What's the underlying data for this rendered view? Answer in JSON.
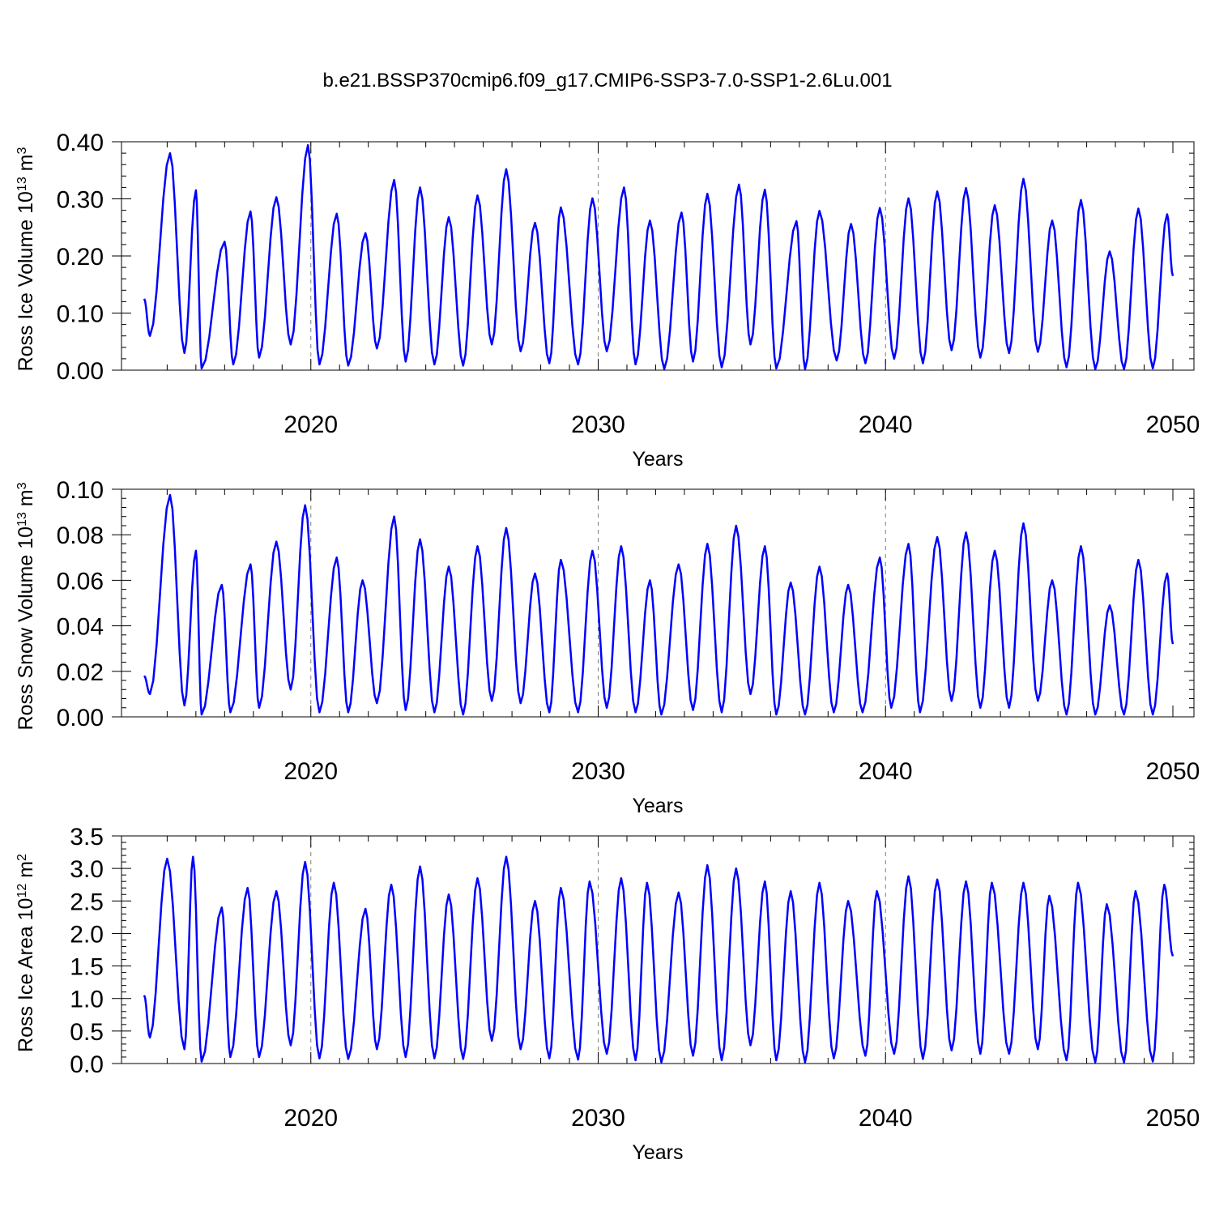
{
  "title": "b.e21.BSSP370cmip6.f09_g17.CMIP6-SSP3-7.0-SSP1-2.6Lu.001",
  "colors": {
    "series": "#0000ff",
    "axis": "#000000",
    "refline": "#7f7f7f"
  },
  "chart_data": [
    {
      "type": "line",
      "ylabel_main": "Ross Ice Volume 10",
      "ylabel_exp": "13",
      "ylabel_unit": " m",
      "ylabel_unit_exp": "3",
      "xlabel": "Years",
      "xlim": [
        2014.2,
        2050.0
      ],
      "ylim": [
        0.0,
        0.4
      ],
      "yticks": [
        "0.00",
        "0.10",
        "0.20",
        "0.30",
        "0.40"
      ],
      "ytick_values": [
        0.0,
        0.1,
        0.2,
        0.3,
        0.4
      ],
      "xticks": [
        "2020",
        "2030",
        "2040",
        "2050"
      ],
      "xtick_values": [
        2020,
        2030,
        2040,
        2050
      ],
      "peaks": [
        [
          2015.1,
          0.38
        ],
        [
          2016.0,
          0.315
        ],
        [
          2017.0,
          0.225
        ],
        [
          2017.9,
          0.278
        ],
        [
          2018.8,
          0.303
        ],
        [
          2019.9,
          0.394
        ],
        [
          2020.9,
          0.274
        ],
        [
          2021.9,
          0.24
        ],
        [
          2022.9,
          0.333
        ],
        [
          2023.8,
          0.32
        ],
        [
          2024.8,
          0.268
        ],
        [
          2025.8,
          0.306
        ],
        [
          2026.8,
          0.352
        ],
        [
          2027.8,
          0.258
        ],
        [
          2028.7,
          0.285
        ],
        [
          2029.8,
          0.301
        ],
        [
          2030.9,
          0.32
        ],
        [
          2031.8,
          0.262
        ],
        [
          2032.9,
          0.276
        ],
        [
          2033.8,
          0.309
        ],
        [
          2034.9,
          0.325
        ],
        [
          2035.8,
          0.316
        ],
        [
          2036.9,
          0.261
        ],
        [
          2037.7,
          0.279
        ],
        [
          2038.8,
          0.256
        ],
        [
          2039.8,
          0.284
        ],
        [
          2040.8,
          0.301
        ],
        [
          2041.8,
          0.313
        ],
        [
          2042.8,
          0.319
        ],
        [
          2043.8,
          0.289
        ],
        [
          2044.8,
          0.335
        ],
        [
          2045.8,
          0.262
        ],
        [
          2046.8,
          0.298
        ],
        [
          2047.8,
          0.208
        ],
        [
          2048.8,
          0.283
        ],
        [
          2049.8,
          0.273
        ]
      ],
      "troughs": [
        [
          2014.2,
          0.125
        ],
        [
          2014.4,
          0.06
        ],
        [
          2015.6,
          0.03
        ],
        [
          2016.2,
          0.003
        ],
        [
          2017.3,
          0.01
        ],
        [
          2018.2,
          0.022
        ],
        [
          2019.3,
          0.045
        ],
        [
          2020.3,
          0.01
        ],
        [
          2021.3,
          0.008
        ],
        [
          2022.3,
          0.038
        ],
        [
          2023.3,
          0.015
        ],
        [
          2024.3,
          0.01
        ],
        [
          2025.3,
          0.008
        ],
        [
          2026.3,
          0.045
        ],
        [
          2027.3,
          0.033
        ],
        [
          2028.3,
          0.012
        ],
        [
          2029.3,
          0.01
        ],
        [
          2030.3,
          0.033
        ],
        [
          2031.3,
          0.01
        ],
        [
          2032.3,
          0.002
        ],
        [
          2033.3,
          0.015
        ],
        [
          2034.3,
          0.005
        ],
        [
          2035.3,
          0.045
        ],
        [
          2036.2,
          0.003
        ],
        [
          2037.2,
          0.002
        ],
        [
          2038.3,
          0.017
        ],
        [
          2039.3,
          0.012
        ],
        [
          2040.3,
          0.02
        ],
        [
          2041.3,
          0.012
        ],
        [
          2042.3,
          0.035
        ],
        [
          2043.3,
          0.022
        ],
        [
          2044.3,
          0.03
        ],
        [
          2045.3,
          0.032
        ],
        [
          2046.3,
          0.005
        ],
        [
          2047.3,
          0.002
        ],
        [
          2048.3,
          0.002
        ],
        [
          2049.3,
          0.003
        ],
        [
          2050.0,
          0.165
        ]
      ]
    },
    {
      "type": "line",
      "ylabel_main": "Ross Snow Volume 10",
      "ylabel_exp": "13",
      "ylabel_unit": " m",
      "ylabel_unit_exp": "3",
      "xlabel": "Years",
      "xlim": [
        2014.2,
        2050.0
      ],
      "ylim": [
        0.0,
        0.1
      ],
      "yticks": [
        "0.00",
        "0.02",
        "0.04",
        "0.06",
        "0.08",
        "0.10"
      ],
      "ytick_values": [
        0.0,
        0.02,
        0.04,
        0.06,
        0.08,
        0.1
      ],
      "xticks": [
        "2020",
        "2030",
        "2040",
        "2050"
      ],
      "xtick_values": [
        2020,
        2030,
        2040,
        2050
      ],
      "peaks": [
        [
          2015.1,
          0.0975
        ],
        [
          2016.0,
          0.073
        ],
        [
          2016.9,
          0.058
        ],
        [
          2017.9,
          0.067
        ],
        [
          2018.8,
          0.077
        ],
        [
          2019.8,
          0.093
        ],
        [
          2020.9,
          0.07
        ],
        [
          2021.8,
          0.06
        ],
        [
          2022.9,
          0.088
        ],
        [
          2023.8,
          0.078
        ],
        [
          2024.8,
          0.066
        ],
        [
          2025.8,
          0.075
        ],
        [
          2026.8,
          0.083
        ],
        [
          2027.8,
          0.063
        ],
        [
          2028.7,
          0.069
        ],
        [
          2029.8,
          0.073
        ],
        [
          2030.8,
          0.075
        ],
        [
          2031.8,
          0.06
        ],
        [
          2032.8,
          0.067
        ],
        [
          2033.8,
          0.076
        ],
        [
          2034.8,
          0.084
        ],
        [
          2035.8,
          0.075
        ],
        [
          2036.7,
          0.059
        ],
        [
          2037.7,
          0.066
        ],
        [
          2038.7,
          0.058
        ],
        [
          2039.8,
          0.07
        ],
        [
          2040.8,
          0.076
        ],
        [
          2041.8,
          0.079
        ],
        [
          2042.8,
          0.081
        ],
        [
          2043.8,
          0.073
        ],
        [
          2044.8,
          0.085
        ],
        [
          2045.8,
          0.06
        ],
        [
          2046.8,
          0.075
        ],
        [
          2047.8,
          0.049
        ],
        [
          2048.8,
          0.069
        ],
        [
          2049.8,
          0.063
        ]
      ],
      "troughs": [
        [
          2014.2,
          0.018
        ],
        [
          2014.4,
          0.01
        ],
        [
          2015.6,
          0.005
        ],
        [
          2016.2,
          0.001
        ],
        [
          2017.2,
          0.002
        ],
        [
          2018.2,
          0.004
        ],
        [
          2019.3,
          0.012
        ],
        [
          2020.3,
          0.002
        ],
        [
          2021.3,
          0.002
        ],
        [
          2022.3,
          0.006
        ],
        [
          2023.3,
          0.003
        ],
        [
          2024.3,
          0.002
        ],
        [
          2025.3,
          0.001
        ],
        [
          2026.3,
          0.007
        ],
        [
          2027.3,
          0.006
        ],
        [
          2028.3,
          0.002
        ],
        [
          2029.3,
          0.002
        ],
        [
          2030.3,
          0.004
        ],
        [
          2031.3,
          0.002
        ],
        [
          2032.2,
          0.001
        ],
        [
          2033.3,
          0.003
        ],
        [
          2034.3,
          0.002
        ],
        [
          2035.3,
          0.01
        ],
        [
          2036.2,
          0.001
        ],
        [
          2037.2,
          0.001
        ],
        [
          2038.2,
          0.002
        ],
        [
          2039.2,
          0.002
        ],
        [
          2040.2,
          0.004
        ],
        [
          2041.2,
          0.002
        ],
        [
          2042.3,
          0.007
        ],
        [
          2043.3,
          0.004
        ],
        [
          2044.3,
          0.004
        ],
        [
          2045.3,
          0.007
        ],
        [
          2046.3,
          0.001
        ],
        [
          2047.3,
          0.001
        ],
        [
          2048.3,
          0.001
        ],
        [
          2049.3,
          0.001
        ],
        [
          2050.0,
          0.032
        ]
      ]
    },
    {
      "type": "line",
      "ylabel_main": "Ross Ice Area 10",
      "ylabel_exp": "12",
      "ylabel_unit": " m",
      "ylabel_unit_exp": "2",
      "xlabel": "Years",
      "xlim": [
        2014.2,
        2050.0
      ],
      "ylim": [
        0.0,
        3.5
      ],
      "yticks": [
        "0.0",
        "0.5",
        "1.0",
        "1.5",
        "2.0",
        "2.5",
        "3.0",
        "3.5"
      ],
      "ytick_values": [
        0.0,
        0.5,
        1.0,
        1.5,
        2.0,
        2.5,
        3.0,
        3.5
      ],
      "xticks": [
        "2020",
        "2030",
        "2040",
        "2050"
      ],
      "xtick_values": [
        2020,
        2030,
        2040,
        2050
      ],
      "peaks": [
        [
          2015.0,
          3.15
        ],
        [
          2015.9,
          3.18
        ],
        [
          2016.9,
          2.4
        ],
        [
          2017.8,
          2.7
        ],
        [
          2018.8,
          2.65
        ],
        [
          2019.8,
          3.1
        ],
        [
          2020.8,
          2.78
        ],
        [
          2021.9,
          2.38
        ],
        [
          2022.8,
          2.75
        ],
        [
          2023.8,
          3.03
        ],
        [
          2024.8,
          2.6
        ],
        [
          2025.8,
          2.85
        ],
        [
          2026.8,
          3.18
        ],
        [
          2027.8,
          2.5
        ],
        [
          2028.7,
          2.7
        ],
        [
          2029.7,
          2.8
        ],
        [
          2030.8,
          2.85
        ],
        [
          2031.7,
          2.78
        ],
        [
          2032.8,
          2.63
        ],
        [
          2033.8,
          3.05
        ],
        [
          2034.8,
          3.0
        ],
        [
          2035.8,
          2.8
        ],
        [
          2036.7,
          2.65
        ],
        [
          2037.7,
          2.78
        ],
        [
          2038.7,
          2.5
        ],
        [
          2039.7,
          2.65
        ],
        [
          2040.8,
          2.88
        ],
        [
          2041.8,
          2.83
        ],
        [
          2042.8,
          2.8
        ],
        [
          2043.7,
          2.78
        ],
        [
          2044.8,
          2.78
        ],
        [
          2045.7,
          2.58
        ],
        [
          2046.7,
          2.78
        ],
        [
          2047.7,
          2.45
        ],
        [
          2048.7,
          2.65
        ],
        [
          2049.7,
          2.75
        ]
      ],
      "troughs": [
        [
          2014.2,
          1.05
        ],
        [
          2014.4,
          0.4
        ],
        [
          2015.6,
          0.22
        ],
        [
          2016.2,
          0.03
        ],
        [
          2017.2,
          0.1
        ],
        [
          2018.2,
          0.1
        ],
        [
          2019.3,
          0.28
        ],
        [
          2020.3,
          0.08
        ],
        [
          2021.3,
          0.07
        ],
        [
          2022.3,
          0.22
        ],
        [
          2023.3,
          0.1
        ],
        [
          2024.3,
          0.08
        ],
        [
          2025.3,
          0.07
        ],
        [
          2026.3,
          0.35
        ],
        [
          2027.3,
          0.22
        ],
        [
          2028.3,
          0.08
        ],
        [
          2029.3,
          0.06
        ],
        [
          2030.3,
          0.15
        ],
        [
          2031.3,
          0.05
        ],
        [
          2032.2,
          0.02
        ],
        [
          2033.3,
          0.12
        ],
        [
          2034.3,
          0.05
        ],
        [
          2035.3,
          0.28
        ],
        [
          2036.2,
          0.05
        ],
        [
          2037.2,
          0.02
        ],
        [
          2038.2,
          0.08
        ],
        [
          2039.3,
          0.12
        ],
        [
          2040.3,
          0.15
        ],
        [
          2041.3,
          0.07
        ],
        [
          2042.3,
          0.2
        ],
        [
          2043.3,
          0.15
        ],
        [
          2044.3,
          0.15
        ],
        [
          2045.3,
          0.22
        ],
        [
          2046.3,
          0.05
        ],
        [
          2047.3,
          0.02
        ],
        [
          2048.3,
          0.02
        ],
        [
          2049.3,
          0.03
        ],
        [
          2050.0,
          1.65
        ]
      ]
    }
  ]
}
